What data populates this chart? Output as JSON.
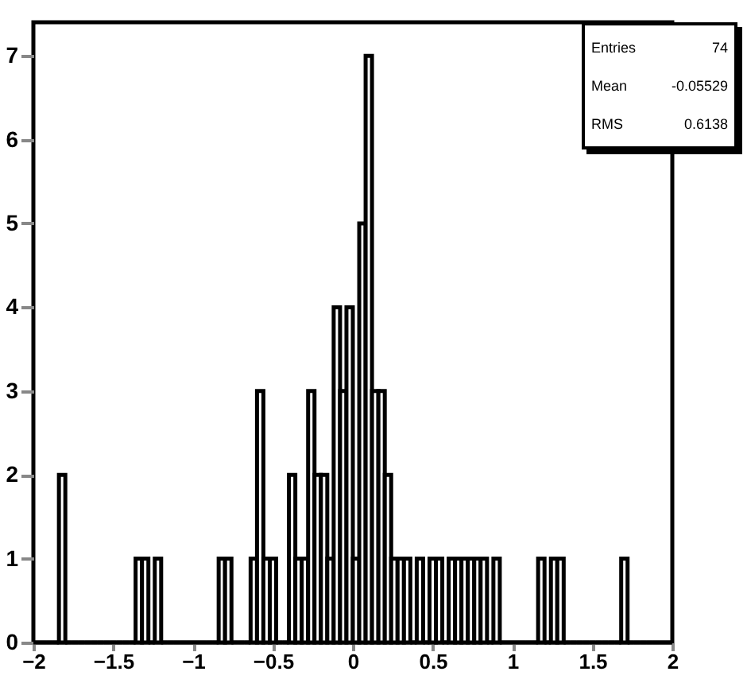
{
  "chart_data": {
    "type": "histogram",
    "bins": [
      -2,
      -1.96,
      -1.92,
      -1.88,
      -1.84,
      -1.8,
      -1.76,
      -1.72,
      -1.68,
      -1.64,
      -1.6,
      -1.56,
      -1.52,
      -1.48,
      -1.44,
      -1.4,
      -1.36,
      -1.32,
      -1.28,
      -1.24,
      -1.2,
      -1.16,
      -1.12,
      -1.08,
      -1.04,
      -1,
      -0.96,
      -0.92,
      -0.88,
      -0.84,
      -0.8,
      -0.76,
      -0.72,
      -0.68,
      -0.64,
      -0.6,
      -0.56,
      -0.52,
      -0.48,
      -0.44,
      -0.4,
      -0.36,
      -0.32,
      -0.28,
      -0.24,
      -0.2,
      -0.16,
      -0.12,
      -0.08,
      -0.04,
      0,
      0.04,
      0.08,
      0.12,
      0.16,
      0.2,
      0.24,
      0.28,
      0.32,
      0.36,
      0.4,
      0.44,
      0.48,
      0.52,
      0.56,
      0.6,
      0.64,
      0.68,
      0.72,
      0.76,
      0.8,
      0.84,
      0.88,
      0.92,
      0.96,
      1,
      1.04,
      1.08,
      1.12,
      1.16,
      1.2,
      1.24,
      1.28,
      1.32,
      1.36,
      1.4,
      1.44,
      1.48,
      1.52,
      1.56,
      1.6,
      1.64,
      1.68,
      1.72,
      1.76,
      1.8,
      1.84,
      1.88,
      1.92,
      1.96,
      2
    ],
    "values": [
      0,
      0,
      0,
      0,
      2,
      0,
      0,
      0,
      0,
      0,
      0,
      0,
      0,
      0,
      0,
      0,
      1,
      1,
      0,
      1,
      0,
      0,
      0,
      0,
      0,
      0,
      0,
      0,
      0,
      1,
      1,
      0,
      0,
      0,
      1,
      3,
      1,
      1,
      0,
      0,
      2,
      1,
      1,
      3,
      2,
      2,
      1,
      4,
      3,
      4,
      1,
      5,
      7,
      3,
      3,
      2,
      1,
      1,
      1,
      0,
      1,
      0,
      1,
      1,
      0,
      1,
      1,
      1,
      1,
      1,
      1,
      0,
      1,
      0,
      0,
      0,
      0,
      0,
      0,
      1,
      0,
      1,
      1,
      0,
      0,
      0,
      0,
      0,
      0,
      0,
      0,
      0,
      1,
      0,
      0,
      0,
      0,
      0,
      0,
      0
    ],
    "color": "#000000",
    "xlim": [
      -2,
      2
    ],
    "xticks": [
      -2,
      -1.5,
      -1,
      -0.5,
      0,
      0.5,
      1,
      1.5,
      2
    ],
    "ylim": [
      0,
      7.4
    ],
    "yticks": [
      0,
      1,
      2,
      3,
      4,
      5,
      6,
      7
    ],
    "annotations": [
      "Entries",
      "74",
      "Mean",
      "-0.05529",
      "RMS",
      "0.6138"
    ]
  }
}
